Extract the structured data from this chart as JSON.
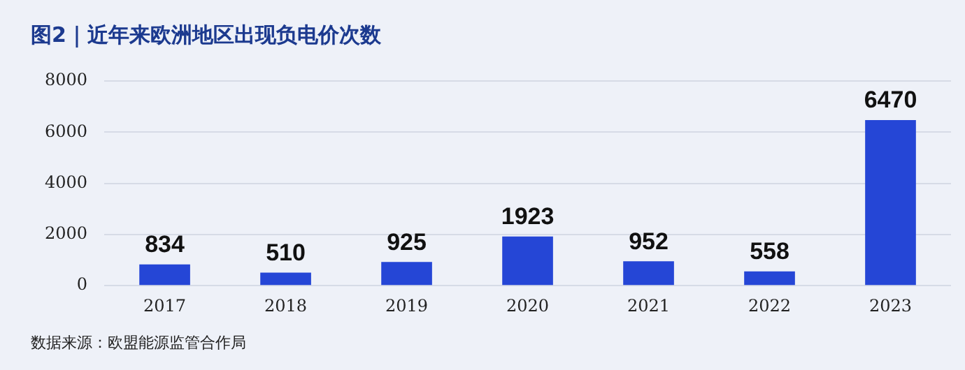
{
  "chart_data": {
    "type": "bar",
    "title": "图2｜近年来欧洲地区出现负电价次数",
    "categories": [
      "2017",
      "2018",
      "2019",
      "2020",
      "2021",
      "2022",
      "2023"
    ],
    "values": [
      834,
      510,
      925,
      1923,
      952,
      558,
      6470
    ],
    "color": "#2546d6",
    "ylim": [
      0,
      8000
    ],
    "yticks": [
      0,
      2000,
      4000,
      6000,
      8000
    ],
    "grid": "y",
    "legend": false,
    "data_labels": true,
    "annotations": [
      "数据来源：欧盟能源监管合作局"
    ]
  }
}
